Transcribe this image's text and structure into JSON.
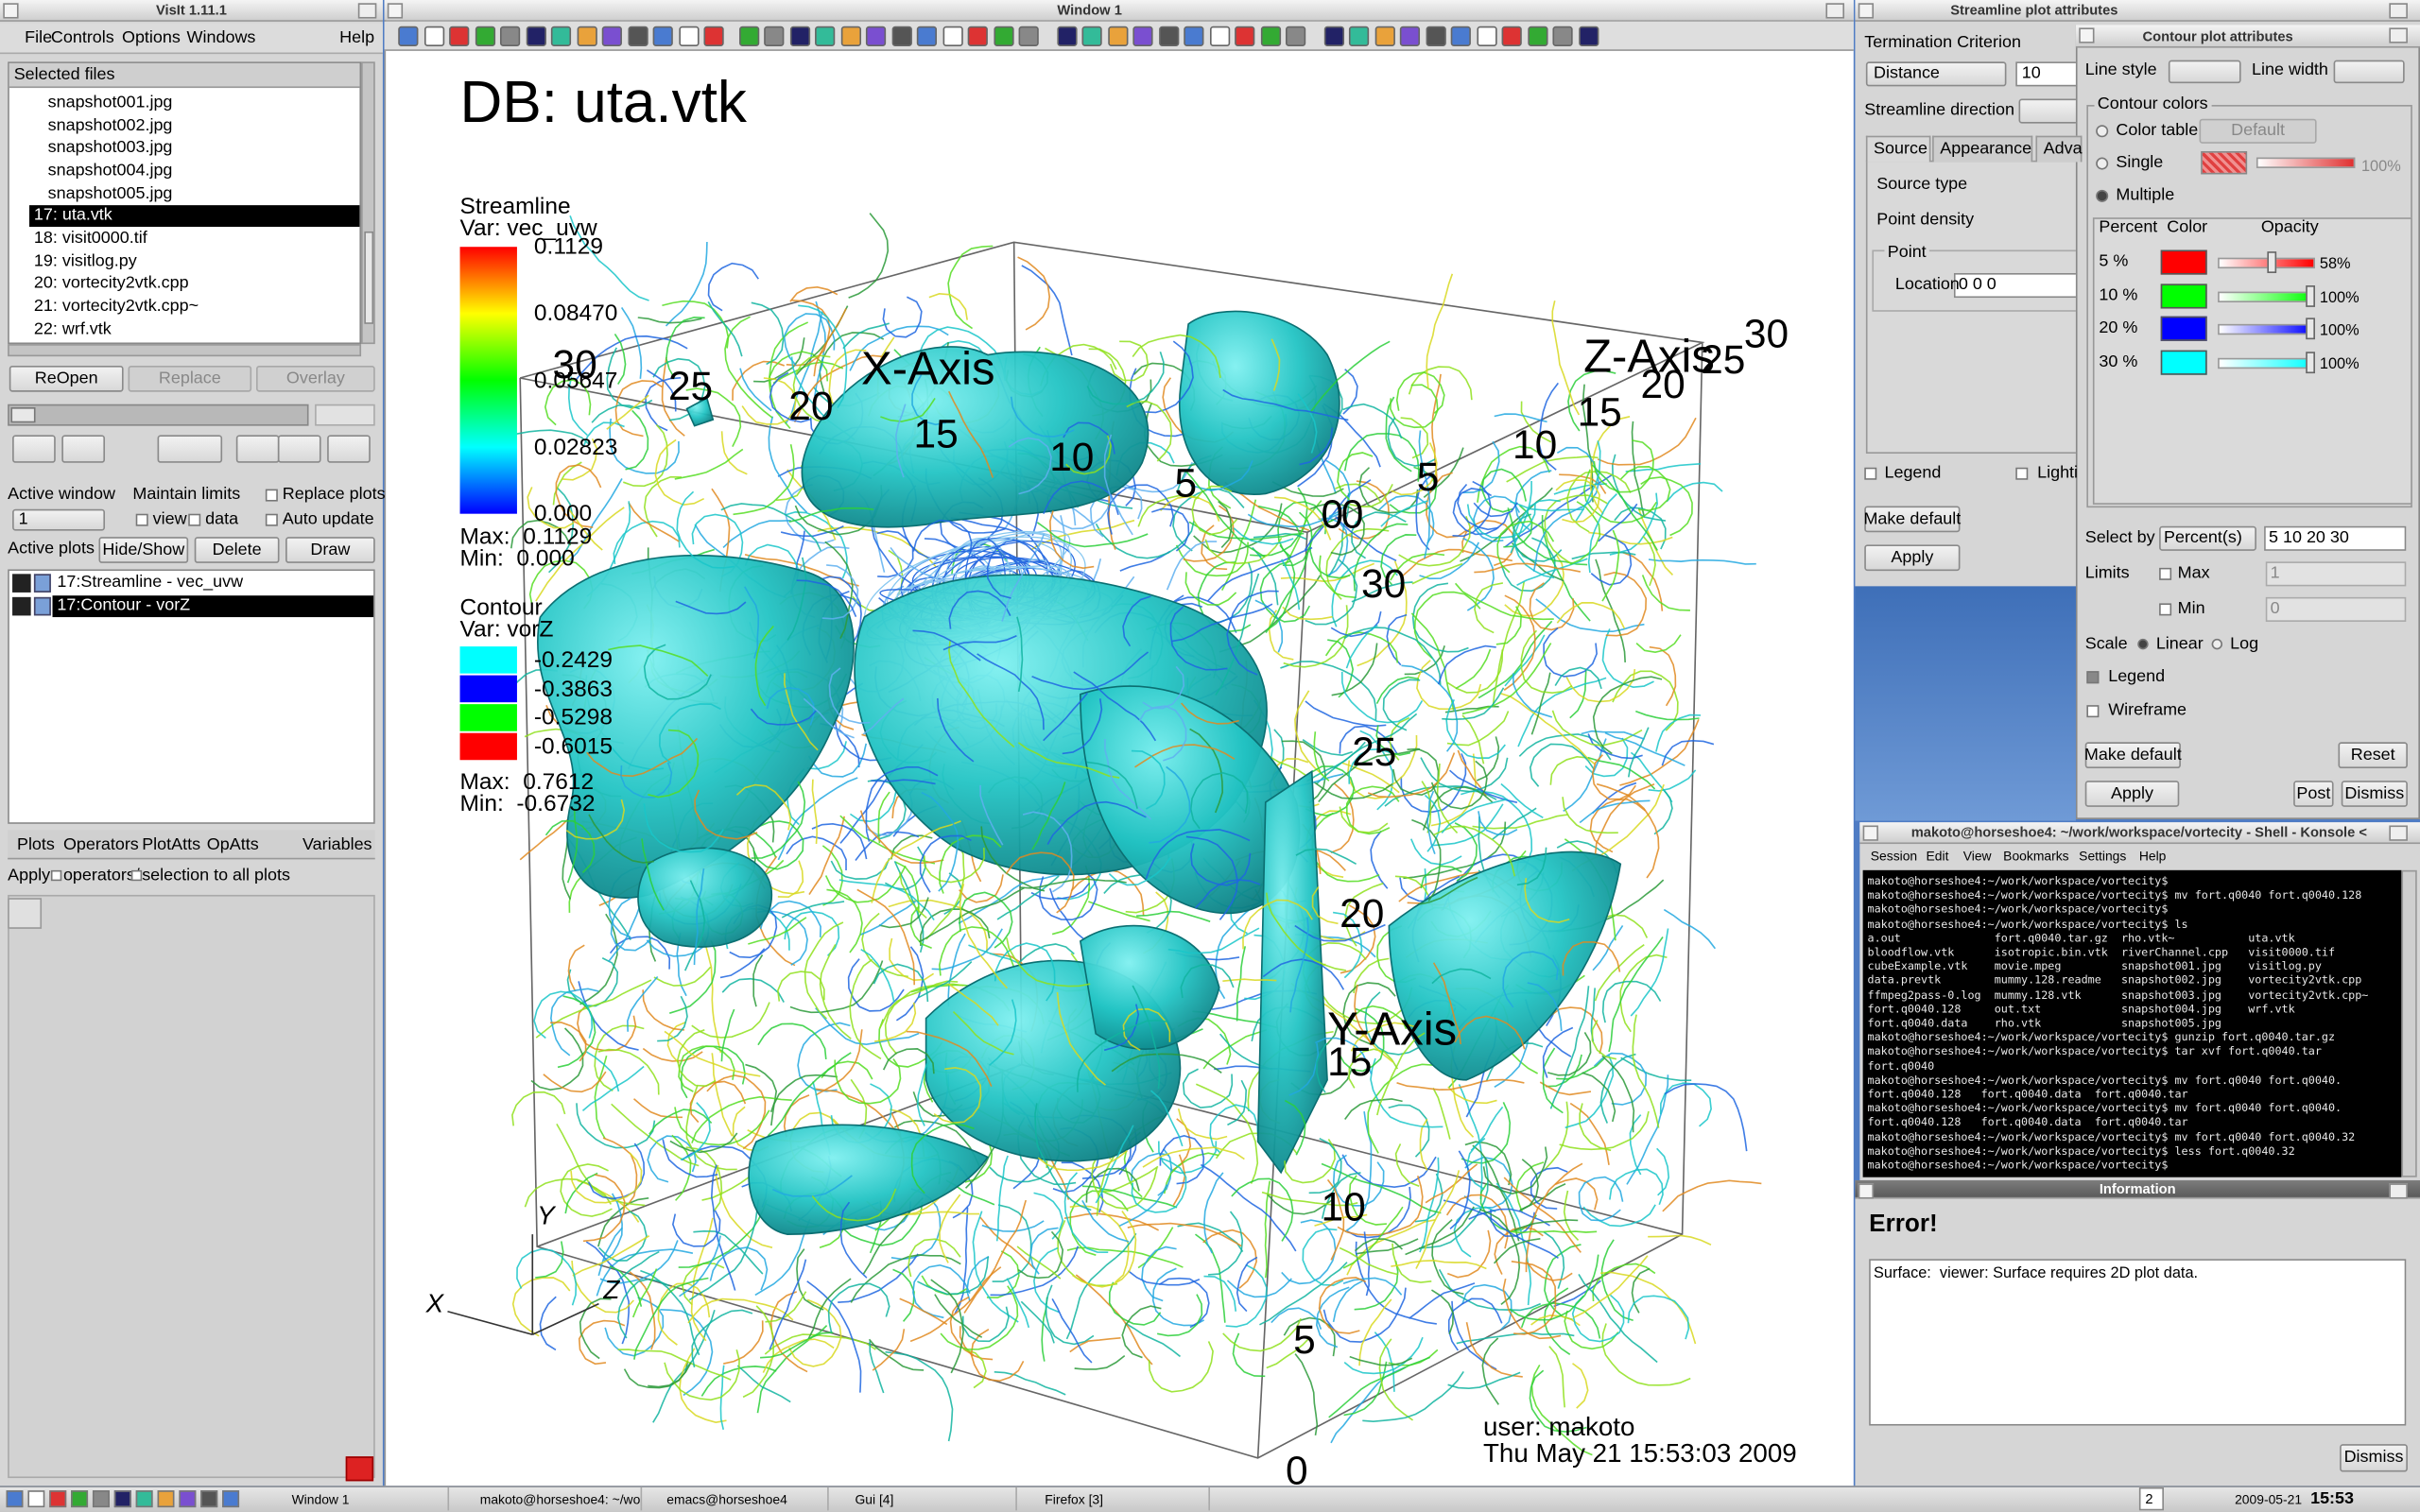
{
  "visit_gui": {
    "title": "VisIt 1.11.1",
    "menu": [
      "File",
      "Controls",
      "Options",
      "Windows",
      "Help"
    ],
    "files_header": "Selected files",
    "files": [
      "snapshot001.jpg",
      "snapshot002.jpg",
      "snapshot003.jpg",
      "snapshot004.jpg",
      "snapshot005.jpg",
      "17: uta.vtk",
      "18: visit0000.tif",
      "19: visitlog.py",
      "20: vortecity2vtk.cpp",
      "21: vortecity2vtk.cpp~",
      "22: wrf.vtk"
    ],
    "selected_file": 5,
    "file_buttons": [
      "ReOpen",
      "Replace",
      "Overlay"
    ],
    "active_window": "Active window",
    "active_window_value": "1",
    "maintain_limits": "Maintain limits",
    "view": "view",
    "data": "data",
    "replace_plots": "Replace plots",
    "auto_update": "Auto update",
    "active_plots": "Active plots",
    "plot_buttons": [
      "Hide/Show",
      "Delete",
      "Draw"
    ],
    "plots": [
      "17:Streamline - vec_uvw",
      "17:Contour - vorZ"
    ],
    "selected_plot": 1,
    "tabs": [
      "Plots",
      "Operators",
      "PlotAtts",
      "OpAtts",
      "Variables"
    ],
    "apply": "Apply",
    "apply_operators": "operators/",
    "apply_selection": "selection to all plots"
  },
  "viewer": {
    "window_title": "Window 1",
    "db": "DB: uta.vtk",
    "streamline_legend": {
      "title": "Streamline",
      "var": "Var: vec_uvw",
      "labels": [
        "0.1129",
        "0.08470",
        "0.05647",
        "0.02823",
        "0.000"
      ],
      "max": "Max:  0.1129",
      "min": "Min:  0.000"
    },
    "contour_legend": {
      "title": "Contour",
      "var": "Var: vorZ",
      "levels": [
        {
          "label": "-0.2429",
          "color": "#00ffff"
        },
        {
          "label": "-0.3863",
          "color": "#0000ff"
        },
        {
          "label": "-0.5298",
          "color": "#00ff00"
        },
        {
          "label": "-0.6015",
          "color": "#ff0000"
        }
      ],
      "max": "Max:  0.7612",
      "min": "Min:  -0.6732"
    },
    "x_axis": {
      "title": "X-Axis",
      "ticks": [
        "30",
        "25",
        "20",
        "15",
        "10",
        "5",
        "0"
      ]
    },
    "y_axis": {
      "title": "Y-Axis",
      "ticks": [
        "30",
        "25",
        "20",
        "15",
        "10",
        "5",
        "0"
      ]
    },
    "z_axis": {
      "title": "Z-Axis",
      "ticks": [
        "0",
        "5",
        "10",
        "15",
        "20",
        "25",
        "30"
      ]
    },
    "triad": [
      "X",
      "Y",
      "Z"
    ],
    "user": "user: makoto",
    "date": "Thu May 21 15:53:03 2009"
  },
  "streamline_window": {
    "title": "Streamline plot attributes",
    "termination": "Termination Criterion",
    "criterion": "Distance",
    "value": "10",
    "direction": "Streamline direction",
    "tabs": [
      "Source",
      "Appearance",
      "Adva"
    ],
    "source_type": "Source type",
    "point_density": "Point density",
    "point": "Point",
    "location": "Location",
    "location_value": "0 0 0",
    "legend": "Legend",
    "lighting": "Lighti",
    "make_default": "Make default",
    "apply": "Apply"
  },
  "contour_window": {
    "title": "Contour plot attributes",
    "line_style": "Line style",
    "line_width": "Line width",
    "contour_colors": "Contour colors",
    "color_table": "Color table",
    "default": "Default",
    "single": "Single",
    "single_opacity": "100%",
    "multiple": "Multiple",
    "columns": [
      "Percent",
      "Color",
      "Opacity"
    ],
    "levels": [
      {
        "percent": "5 %",
        "color": "#ff0000",
        "opacity": "58%"
      },
      {
        "percent": "10 %",
        "color": "#00ff00",
        "opacity": "100%"
      },
      {
        "percent": "20 %",
        "color": "#0000ff",
        "opacity": "100%"
      },
      {
        "percent": "30 %",
        "color": "#00ffff",
        "opacity": "100%"
      }
    ],
    "select_by": "Select by",
    "select_mode": "Percent(s)",
    "select_values": "5 10 20 30",
    "limits": "Limits",
    "max": "Max",
    "max_value": "1",
    "min": "Min",
    "min_value": "0",
    "scale": "Scale",
    "linear": "Linear",
    "log": "Log",
    "legend": "Legend",
    "wireframe": "Wireframe",
    "buttons": [
      "Make default",
      "Reset",
      "Apply",
      "Post",
      "Dismiss"
    ]
  },
  "konsole": {
    "title": "makoto@horseshoe4: ~/work/workspace/vortecity - Shell - Konsole <",
    "menu": [
      "Session",
      "Edit",
      "View",
      "Bookmarks",
      "Settings",
      "Help"
    ],
    "lines": [
      "makoto@horseshoe4:~/work/workspace/vortecity$",
      "makoto@horseshoe4:~/work/workspace/vortecity$ mv fort.q0040 fort.q0040.128",
      "makoto@horseshoe4:~/work/workspace/vortecity$",
      "makoto@horseshoe4:~/work/workspace/vortecity$ ls",
      "a.out              fort.q0040.tar.gz  rho.vtk~           uta.vtk",
      "bloodflow.vtk      isotropic.bin.vtk  riverChannel.cpp   visit0000.tif",
      "cubeExample.vtk    movie.mpeg         snapshot001.jpg    visitlog.py",
      "data.prevtk        mummy.128.readme   snapshot002.jpg    vortecity2vtk.cpp",
      "ffmpeg2pass-0.log  mummy.128.vtk      snapshot003.jpg    vortecity2vtk.cpp~",
      "fort.q0040.128     out.txt            snapshot004.jpg    wrf.vtk",
      "fort.q0040.data    rho.vtk            snapshot005.jpg",
      "makoto@horseshoe4:~/work/workspace/vortecity$ gunzip fort.q0040.tar.gz",
      "makoto@horseshoe4:~/work/workspace/vortecity$ tar xvf fort.q0040.tar",
      "fort.q0040",
      "makoto@horseshoe4:~/work/workspace/vortecity$ mv fort.q0040 fort.q0040.",
      "fort.q0040.128   fort.q0040.data  fort.q0040.tar",
      "makoto@horseshoe4:~/work/workspace/vortecity$ mv fort.q0040 fort.q0040.",
      "fort.q0040.128   fort.q0040.data  fort.q0040.tar",
      "makoto@horseshoe4:~/work/workspace/vortecity$ mv fort.q0040 fort.q0040.32",
      "makoto@horseshoe4:~/work/workspace/vortecity$ less fort.q0040.32",
      "makoto@horseshoe4:~/work/workspace/vortecity$"
    ]
  },
  "information": {
    "title": "Information",
    "heading": "Error!",
    "message": "Surface:  viewer: Surface requires 2D plot data.",
    "button": "Dismiss"
  },
  "taskbar": {
    "tasks": [
      "Window 1",
      "makoto@horseshoe4: ~/wo",
      "emacs@horseshoe4",
      "Gui [4]",
      "Firefox [3]"
    ],
    "desktop": "2",
    "date": "2009-05-21",
    "time": "15:53"
  }
}
